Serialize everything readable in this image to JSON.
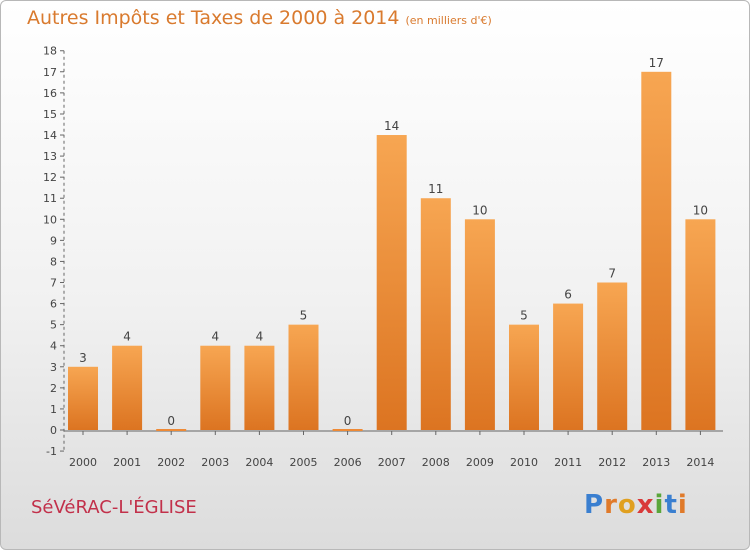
{
  "title": "Autres Impôts et Taxes de 2000 à 2014",
  "unit": "(en milliers d'€)",
  "commune": "SéVéRAC-L'ÉGLISE",
  "logo": {
    "letters": [
      "P",
      "r",
      "o",
      "x",
      "i",
      "t",
      "i"
    ],
    "colors": [
      "#3a7fd0",
      "#e07a2a",
      "#e0a020",
      "#d93a3a",
      "#5aa63a",
      "#3a7fd0",
      "#e07a2a"
    ]
  },
  "colors": {
    "bar": "#ee8a36",
    "title": "#d97a2e",
    "commune": "#c2304a"
  },
  "chart_data": {
    "type": "bar",
    "categories": [
      "2000",
      "2001",
      "2002",
      "2003",
      "2004",
      "2005",
      "2006",
      "2007",
      "2008",
      "2009",
      "2010",
      "2011",
      "2012",
      "2013",
      "2014"
    ],
    "values": [
      3,
      4,
      0,
      4,
      4,
      5,
      0,
      14,
      11,
      10,
      5,
      6,
      7,
      17,
      10
    ],
    "value_labels": [
      "3",
      "4",
      "0",
      "4",
      "4",
      "5",
      "0",
      "14",
      "11",
      "10",
      "5",
      "6",
      "7",
      "17",
      "10"
    ],
    "title": "Autres Impôts et Taxes de 2000 à 2014",
    "subtitle": "(en milliers d'€)",
    "xlabel": "",
    "ylabel": "",
    "ylim": [
      -1,
      18
    ],
    "yticks": [
      "-1",
      "0",
      "1",
      "2",
      "3",
      "4",
      "5",
      "6",
      "7",
      "8",
      "9",
      "10",
      "11",
      "12",
      "13",
      "14",
      "15",
      "16",
      "17",
      "18"
    ],
    "grid": false,
    "legend": "none"
  }
}
